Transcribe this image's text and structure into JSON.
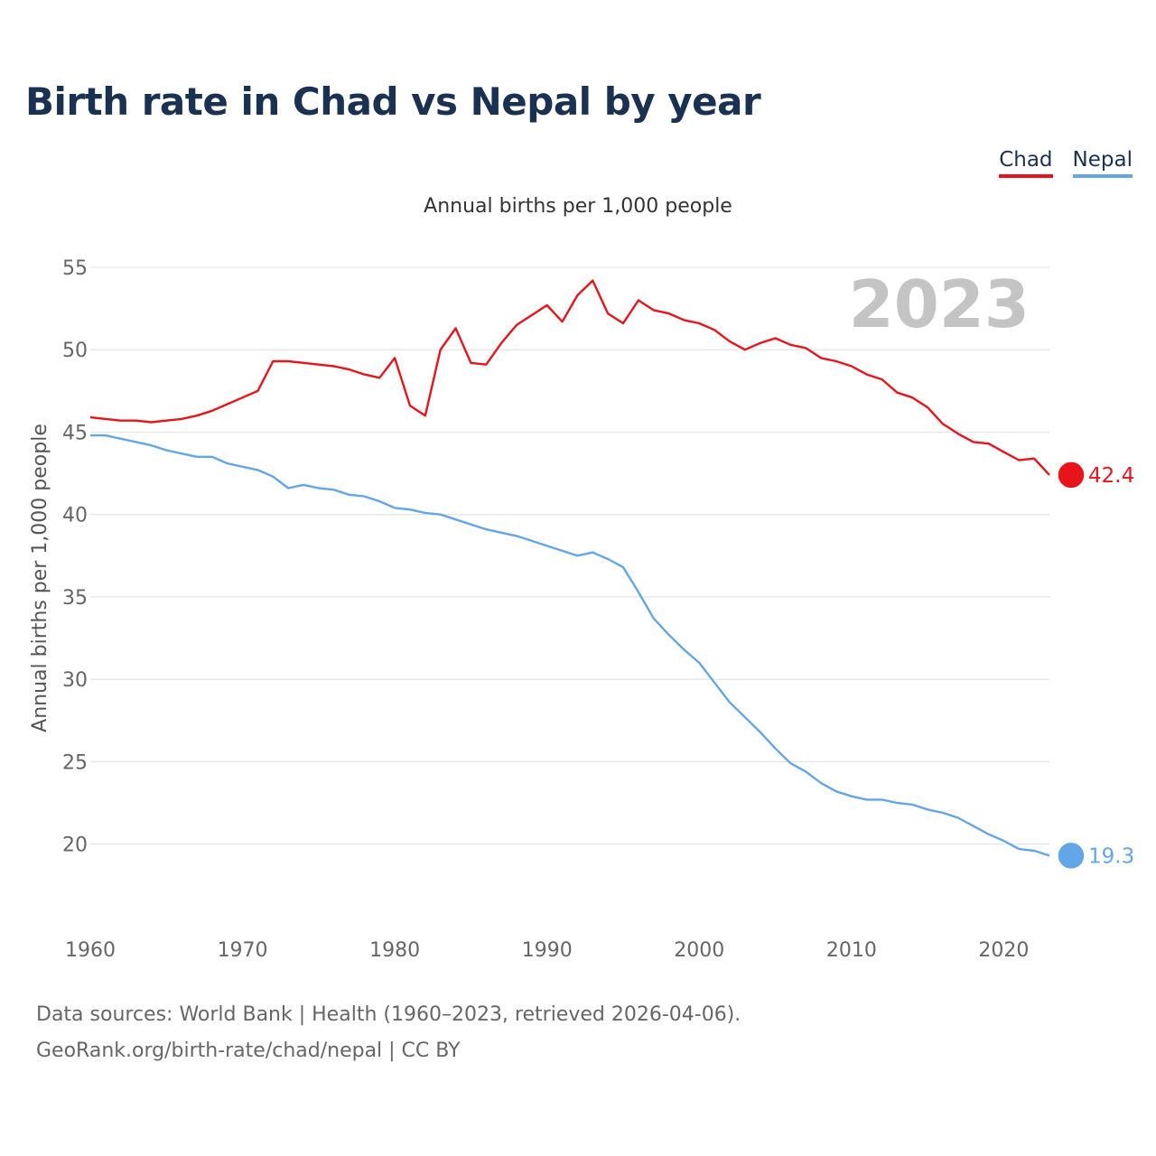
{
  "title": "Birth rate in Chad vs Nepal by year",
  "legend": [
    {
      "label": "Chad",
      "color": "#e8141c"
    },
    {
      "label": "Nepal",
      "color": "#63a6e8"
    }
  ],
  "footer": {
    "line1": "Data sources: World Bank | Health (1960–2023, retrieved 2026-04-06).",
    "line2": "GeoRank.org/birth-rate/chad/nepal | CC BY"
  },
  "chart_data": {
    "type": "line",
    "title": "Birth rate in Chad vs Nepal by year",
    "subtitle": "Annual births per 1,000 people",
    "xlabel": "",
    "ylabel": "Annual births per 1,000 people",
    "year_watermark": "2023",
    "xlim": [
      1960,
      2023
    ],
    "ylim": [
      16.2,
      55
    ],
    "xticks": [
      1960,
      1970,
      1980,
      1990,
      2000,
      2010,
      2020
    ],
    "yticks": [
      20,
      25,
      30,
      35,
      40,
      45,
      50,
      55
    ],
    "grid": true,
    "legend_position": "top-right",
    "x": [
      1960,
      1961,
      1962,
      1963,
      1964,
      1965,
      1966,
      1967,
      1968,
      1969,
      1970,
      1971,
      1972,
      1973,
      1974,
      1975,
      1976,
      1977,
      1978,
      1979,
      1980,
      1981,
      1982,
      1983,
      1984,
      1985,
      1986,
      1987,
      1988,
      1989,
      1990,
      1991,
      1992,
      1993,
      1994,
      1995,
      1996,
      1997,
      1998,
      1999,
      2000,
      2001,
      2002,
      2003,
      2004,
      2005,
      2006,
      2007,
      2008,
      2009,
      2010,
      2011,
      2012,
      2013,
      2014,
      2015,
      2016,
      2017,
      2018,
      2019,
      2020,
      2021,
      2022,
      2023
    ],
    "series": [
      {
        "name": "Chad",
        "color": "#e8141c",
        "end_label": "42.4",
        "values": [
          45.9,
          45.8,
          45.7,
          45.7,
          45.6,
          45.7,
          45.8,
          46.0,
          46.3,
          46.7,
          47.1,
          47.5,
          49.3,
          49.3,
          49.2,
          49.1,
          49.0,
          48.8,
          48.5,
          48.3,
          49.5,
          46.6,
          46.0,
          50.0,
          51.3,
          49.2,
          49.1,
          50.4,
          51.5,
          52.1,
          52.7,
          51.7,
          53.3,
          54.2,
          52.2,
          51.6,
          53.0,
          52.4,
          52.2,
          51.8,
          51.6,
          51.2,
          50.5,
          50.0,
          50.4,
          50.7,
          50.3,
          50.1,
          49.5,
          49.3,
          49.0,
          48.5,
          48.2,
          47.4,
          47.1,
          46.5,
          45.5,
          44.9,
          44.4,
          44.3,
          43.8,
          43.3,
          43.4,
          42.4
        ]
      },
      {
        "name": "Nepal",
        "color": "#63a6e8",
        "end_label": "19.3",
        "values": [
          44.8,
          44.8,
          44.6,
          44.4,
          44.2,
          43.9,
          43.7,
          43.5,
          43.5,
          43.1,
          42.9,
          42.7,
          42.3,
          41.6,
          41.8,
          41.6,
          41.5,
          41.2,
          41.1,
          40.8,
          40.4,
          40.3,
          40.1,
          40.0,
          39.7,
          39.4,
          39.1,
          38.9,
          38.7,
          38.4,
          38.1,
          37.8,
          37.5,
          37.7,
          37.3,
          36.8,
          35.3,
          33.7,
          32.7,
          31.8,
          31.0,
          29.8,
          28.6,
          27.7,
          26.8,
          25.8,
          24.9,
          24.4,
          23.7,
          23.2,
          22.9,
          22.7,
          22.7,
          22.5,
          22.4,
          22.1,
          21.9,
          21.6,
          21.1,
          20.6,
          20.2,
          19.7,
          19.6,
          19.3
        ]
      }
    ]
  }
}
